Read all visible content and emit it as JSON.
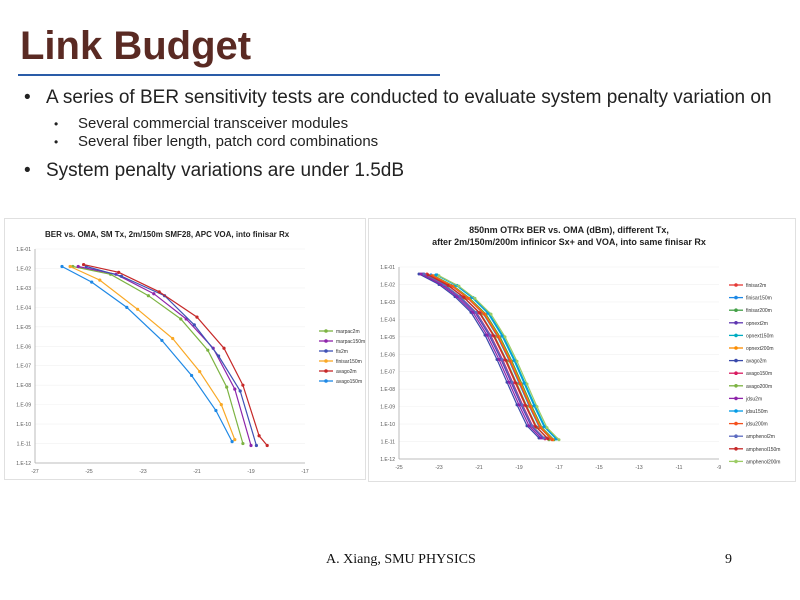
{
  "title": "Link Budget",
  "bullets": [
    {
      "text": "A series of BER sensitivity tests are conducted to evaluate system penalty variation on",
      "subitems": [
        "Several commercial transceiver modules",
        "Several fiber length, patch cord combinations"
      ]
    },
    {
      "text": "System penalty variations are under 1.5dB",
      "subitems": []
    }
  ],
  "bullet_glyph": "•",
  "footer": "A. Xiang, SMU PHYSICS",
  "page_number": "9",
  "chart_data": [
    {
      "type": "line",
      "title": "BER vs. OMA, SM Tx, 2m/150m SMF28, APC VOA, into finisar Rx",
      "yticks": [
        "1.E-01",
        "1.E-02",
        "1.E-03",
        "1.E-04",
        "1.E-05",
        "1.E-06",
        "1.E-07",
        "1.E-08",
        "1.E-09",
        "1.E-10",
        "1.E-11",
        "1.E-12"
      ],
      "xticks": [
        "-27",
        "-25",
        "-23",
        "-21",
        "-19",
        "-17"
      ],
      "legend": "right",
      "series": [
        {
          "name": "marpac2m",
          "color": "#7cb342",
          "points": [
            [
              -25.6,
              1.9
            ],
            [
              -24.2,
              2.3
            ],
            [
              -22.8,
              3.4
            ],
            [
              -21.6,
              4.6
            ],
            [
              -20.6,
              6.2
            ],
            [
              -19.9,
              8.1
            ],
            [
              -19.3,
              11.0
            ]
          ]
        },
        {
          "name": "marpac150m",
          "color": "#8e24aa",
          "points": [
            [
              -25.4,
              1.9
            ],
            [
              -24.0,
              2.3
            ],
            [
              -22.6,
              3.3
            ],
            [
              -21.4,
              4.6
            ],
            [
              -20.4,
              6.1
            ],
            [
              -19.6,
              8.2
            ],
            [
              -19.0,
              11.1
            ]
          ]
        },
        {
          "name": "fis2m",
          "color": "#3f51b5",
          "points": [
            [
              -25.1,
              1.9
            ],
            [
              -23.8,
              2.4
            ],
            [
              -22.2,
              3.4
            ],
            [
              -21.1,
              4.9
            ],
            [
              -20.2,
              6.5
            ],
            [
              -19.4,
              8.3
            ],
            [
              -18.8,
              11.1
            ]
          ]
        },
        {
          "name": "finisar150m",
          "color": "#f9a825",
          "points": [
            [
              -25.7,
              1.9
            ],
            [
              -24.6,
              2.6
            ],
            [
              -23.2,
              4.1
            ],
            [
              -21.9,
              5.6
            ],
            [
              -20.9,
              7.3
            ],
            [
              -20.1,
              9.0
            ],
            [
              -19.6,
              10.8
            ]
          ]
        },
        {
          "name": "avago2m",
          "color": "#c62828",
          "points": [
            [
              -25.2,
              1.8
            ],
            [
              -23.9,
              2.2
            ],
            [
              -22.4,
              3.2
            ],
            [
              -21.0,
              4.5
            ],
            [
              -20.0,
              6.1
            ],
            [
              -19.3,
              8.0
            ],
            [
              -18.7,
              10.6
            ],
            [
              -18.4,
              11.1
            ]
          ]
        },
        {
          "name": "avago150m",
          "color": "#1e88e5",
          "points": [
            [
              -26.0,
              1.9
            ],
            [
              -24.9,
              2.7
            ],
            [
              -23.6,
              4.0
            ],
            [
              -22.3,
              5.7
            ],
            [
              -21.2,
              7.5
            ],
            [
              -20.3,
              9.3
            ],
            [
              -19.7,
              10.9
            ]
          ]
        }
      ]
    },
    {
      "type": "line",
      "title": "850nm OTRx BER vs. OMA (dBm), different Tx, after 2m/150m/200m infinicor Sx+ and VOA, into same finisar Rx",
      "yticks": [
        "1.E-01",
        "1.E-02",
        "1.E-03",
        "1.E-04",
        "1.E-05",
        "1.E-06",
        "1.E-07",
        "1.E-08",
        "1.E-09",
        "1.E-10",
        "1.E-11",
        "1.E-12"
      ],
      "xticks": [
        "-25",
        "-23",
        "-21",
        "-19",
        "-17",
        "-15",
        "-13",
        "-11",
        "-9"
      ],
      "legend": "right",
      "series": [
        {
          "name": "finisar2m",
          "color": "#e53935",
          "shift": 0.0
        },
        {
          "name": "finisar150m",
          "color": "#1e88e5",
          "shift": 0.2
        },
        {
          "name": "finisar200m",
          "color": "#43a047",
          "shift": 0.35
        },
        {
          "name": "opnext2m",
          "color": "#5e35b1",
          "shift": -0.2
        },
        {
          "name": "opnext150m",
          "color": "#00acc1",
          "shift": 0.5
        },
        {
          "name": "opnext200m",
          "color": "#fb8c00",
          "shift": 0.3
        },
        {
          "name": "avago2m",
          "color": "#3949ab",
          "shift": -0.4
        },
        {
          "name": "avago150m",
          "color": "#d81b60",
          "shift": -0.1
        },
        {
          "name": "avago200m",
          "color": "#7cb342",
          "shift": 0.1
        },
        {
          "name": "jdsu2m",
          "color": "#8e24aa",
          "shift": -0.3
        },
        {
          "name": "jdsu150m",
          "color": "#039be5",
          "shift": 0.45
        },
        {
          "name": "jdsu200m",
          "color": "#f4511e",
          "shift": 0.25
        },
        {
          "name": "amphenol2m",
          "color": "#5c6bc0",
          "shift": -0.15
        },
        {
          "name": "amphenol150m",
          "color": "#c62828",
          "shift": 0.05
        },
        {
          "name": "amphenol200m",
          "color": "#9ccc65",
          "shift": 0.6
        }
      ],
      "base_curve": [
        [
          -23.6,
          1.4
        ],
        [
          -22.6,
          2.0
        ],
        [
          -21.8,
          2.7
        ],
        [
          -21.0,
          3.6
        ],
        [
          -20.3,
          4.9
        ],
        [
          -19.7,
          6.3
        ],
        [
          -19.2,
          7.6
        ],
        [
          -18.7,
          8.9
        ],
        [
          -18.2,
          10.1
        ],
        [
          -17.6,
          10.8
        ]
      ]
    }
  ]
}
